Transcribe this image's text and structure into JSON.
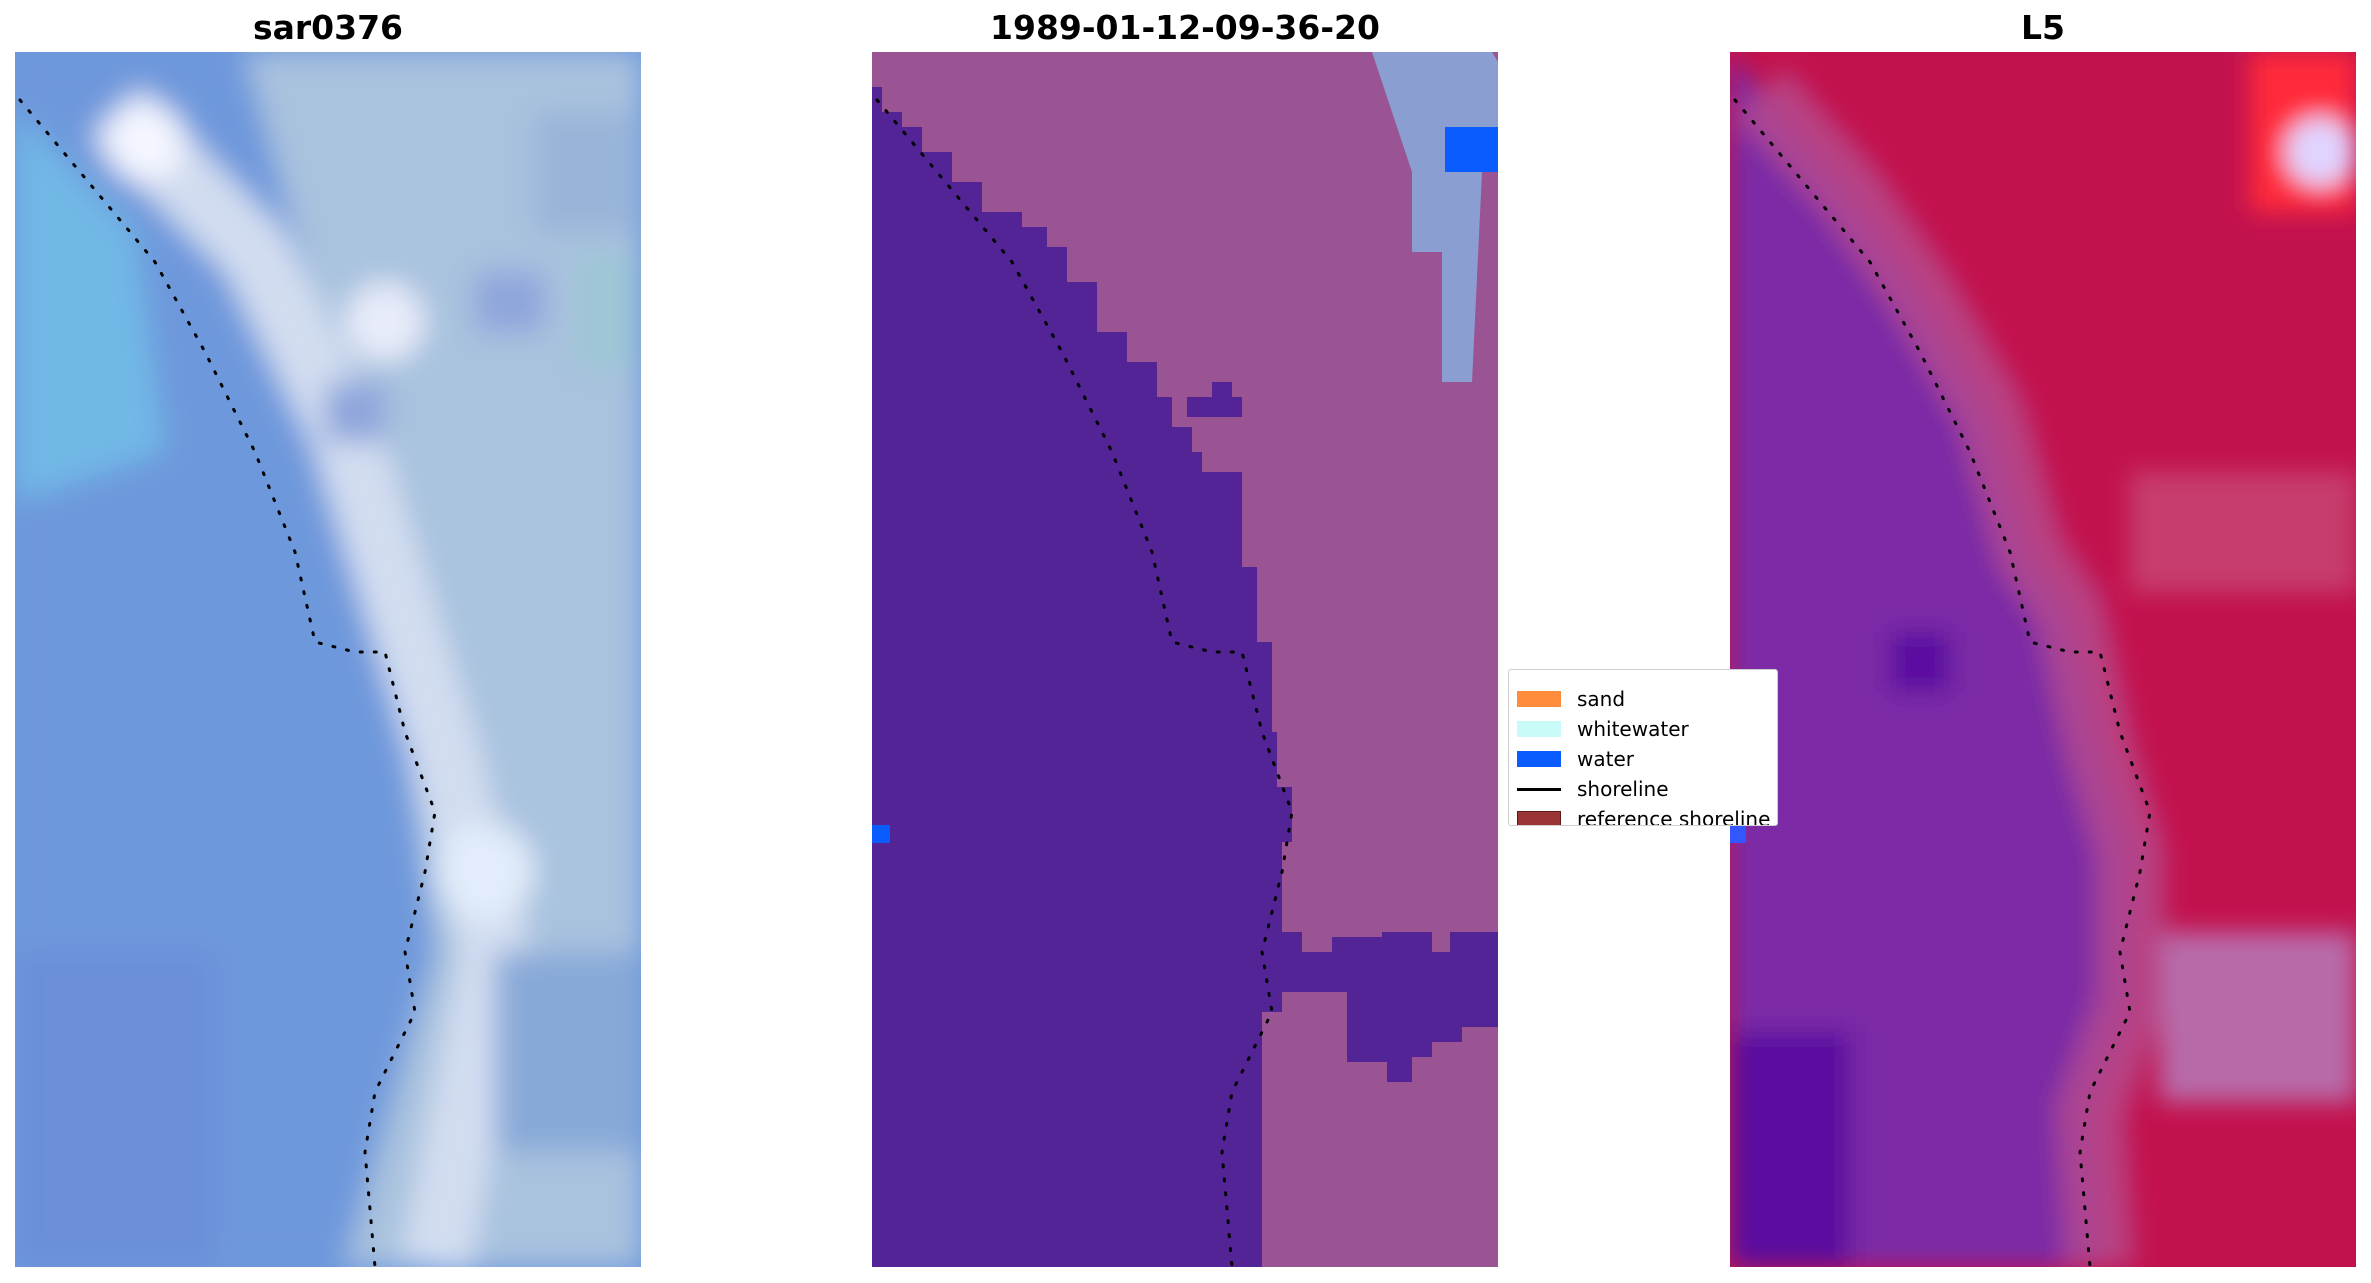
{
  "panels": [
    {
      "title": "sar0376"
    },
    {
      "title": "1989-01-12-09-36-20"
    },
    {
      "title": "L5"
    }
  ],
  "legend": {
    "items": [
      {
        "label": "sand",
        "color": "#ff8c3a",
        "kind": "patch"
      },
      {
        "label": "whitewater",
        "color": "#c8faf8",
        "kind": "patch"
      },
      {
        "label": "water",
        "color": "#0a5cff",
        "kind": "patch"
      },
      {
        "label": "shoreline",
        "color": "#000000",
        "kind": "line"
      },
      {
        "label": "reference shoreline",
        "color": "#9b3535",
        "kind": "patch"
      }
    ]
  },
  "colors": {
    "classified_water": "#522496",
    "classified_land": "#9a5493",
    "water_pixel": "#0a5cff",
    "rgb_water": "#6a94dc",
    "rgb_land": "#a4c4dc",
    "falsecolor_water": "#7c2aa6",
    "falsecolor_land": "#c2124e"
  }
}
